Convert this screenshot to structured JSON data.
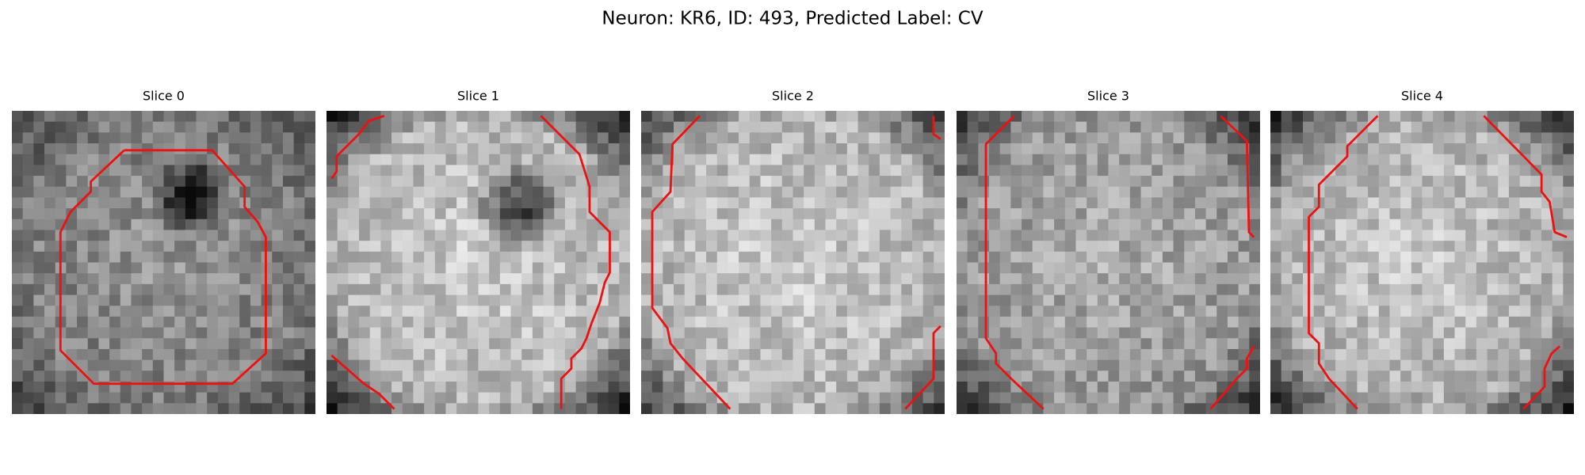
{
  "header": {
    "title": "Neuron: KR6, ID: 493, Predicted Label: CV"
  },
  "slices": [
    {
      "title": "Slice 0"
    },
    {
      "title": "Slice 1"
    },
    {
      "title": "Slice 2"
    },
    {
      "title": "Slice 3"
    },
    {
      "title": "Slice 4"
    }
  ]
}
